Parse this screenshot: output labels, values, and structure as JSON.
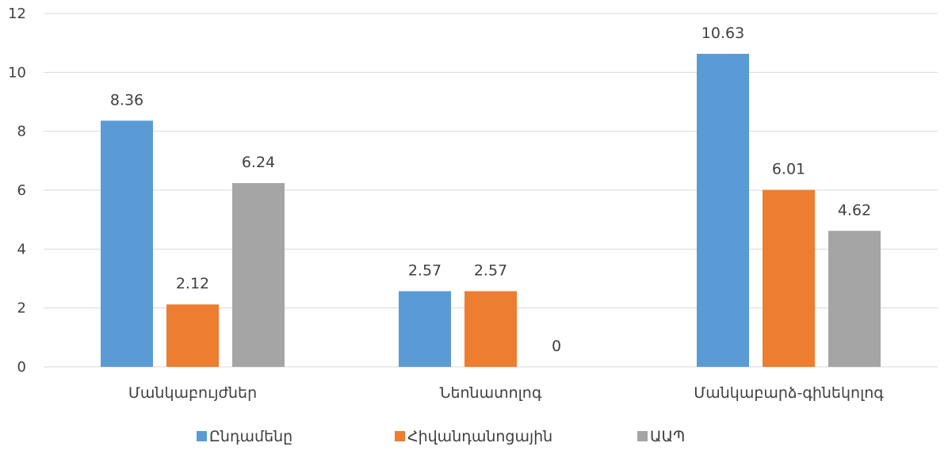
{
  "chart_data": {
    "type": "bar",
    "categories": [
      "Մանկաբույժներ",
      "Նեոնատոլոգ",
      "Մանկաբարձ-գինեկոլոգ"
    ],
    "series": [
      {
        "name": "Ընդամենը",
        "values": [
          8.36,
          2.57,
          10.63
        ],
        "labels": [
          "8.36",
          "2.57",
          "10.63"
        ],
        "color": "#5B9BD5"
      },
      {
        "name": "Հիվանդանոցային",
        "values": [
          2.12,
          2.57,
          6.01
        ],
        "labels": [
          "2.12",
          "2.57",
          "6.01"
        ],
        "color": "#ED7D31"
      },
      {
        "name": "ԱԱՊ",
        "values": [
          6.24,
          0,
          4.62
        ],
        "labels": [
          "6.24",
          "0",
          "4.62"
        ],
        "color": "#A5A5A5"
      }
    ],
    "ylim": [
      0,
      12
    ],
    "yticks": [
      "0",
      "2",
      "4",
      "6",
      "8",
      "10",
      "12"
    ],
    "grid": true,
    "legend_position": "bottom",
    "gridline_color": "#D9D9D9",
    "text_color": "#404040"
  }
}
